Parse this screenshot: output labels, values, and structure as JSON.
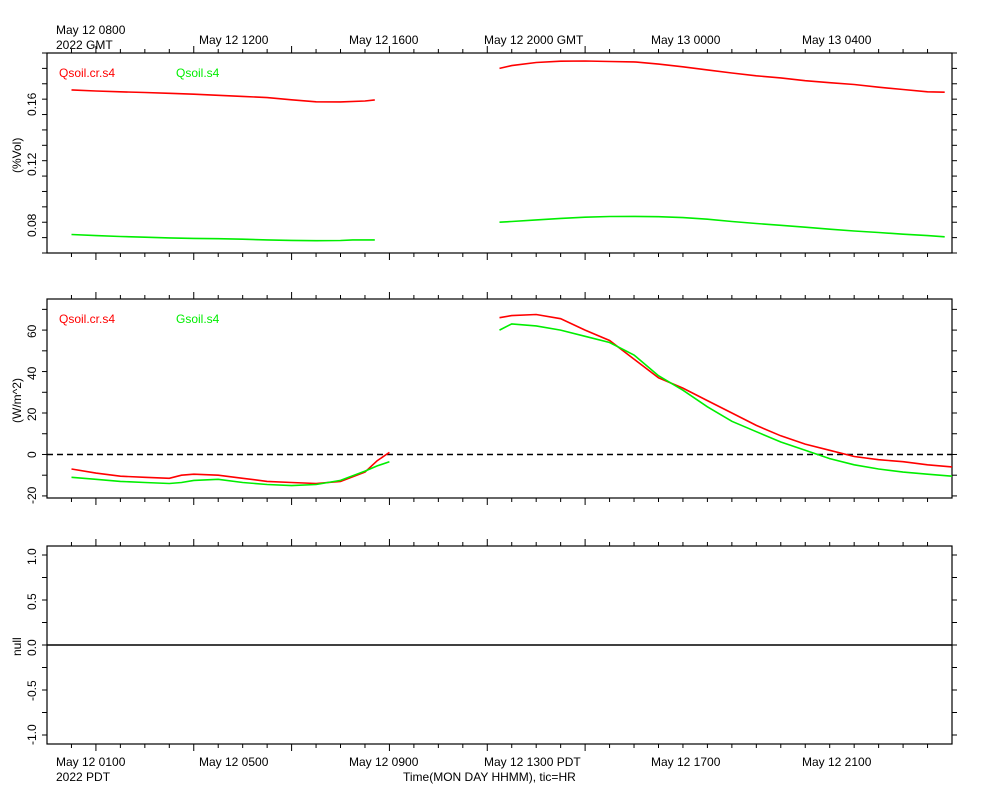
{
  "time_axis": {
    "gmt_labels": [
      "May 12 0800",
      "May 12 1200",
      "May 12 1600",
      "May 12 2000 GMT",
      "May 13 0000",
      "May 13 0400"
    ],
    "gmt_year": "2022 GMT",
    "pdt_labels": [
      "May 12 0100",
      "May 12 0500",
      "May 12 0900",
      "May 12 1300 PDT",
      "May 12 1700",
      "May 12 2100"
    ],
    "pdt_year": "2022 PDT",
    "xlabel": "Time(MON DAY HHMM), tic=HR"
  },
  "chart_data": [
    {
      "type": "line",
      "ylabel": "(%Vol)",
      "ylim": [
        0.06,
        0.19
      ],
      "yticks": [
        "0.08",
        "0.12",
        "0.16"
      ],
      "grid": false,
      "legend_position": "top-left",
      "series": [
        {
          "name": "Qsoil.cr.s4",
          "color": "#ff0000",
          "segments": [
            [
              [
                0,
                0.166
              ],
              [
                1,
                0.1653
              ],
              [
                2,
                0.1648
              ],
              [
                3,
                0.1643
              ],
              [
                4,
                0.1638
              ],
              [
                5,
                0.1632
              ],
              [
                6,
                0.1625
              ],
              [
                7,
                0.1618
              ],
              [
                8,
                0.161
              ],
              [
                9,
                0.1596
              ],
              [
                10,
                0.1583
              ],
              [
                11,
                0.1582
              ],
              [
                12,
                0.1588
              ],
              [
                12.4,
                0.1595
              ]
            ],
            [
              [
                17.5,
                0.18
              ],
              [
                18,
                0.1818
              ],
              [
                19,
                0.1838
              ],
              [
                20,
                0.1847
              ],
              [
                21,
                0.1848
              ],
              [
                22,
                0.1845
              ],
              [
                23,
                0.1842
              ],
              [
                24,
                0.1828
              ],
              [
                25,
                0.181
              ],
              [
                26,
                0.179
              ],
              [
                27,
                0.177
              ],
              [
                28,
                0.1752
              ],
              [
                29,
                0.1738
              ],
              [
                30,
                0.172
              ],
              [
                31,
                0.1707
              ],
              [
                32,
                0.1695
              ],
              [
                33,
                0.1678
              ],
              [
                34,
                0.1663
              ],
              [
                35,
                0.1648
              ],
              [
                35.7,
                0.1645
              ]
            ]
          ]
        },
        {
          "name": "Qsoil.s4",
          "color": "#00ee00",
          "segments": [
            [
              [
                0,
                0.072
              ],
              [
                1,
                0.0713
              ],
              [
                2,
                0.0707
              ],
              [
                3,
                0.0703
              ],
              [
                4,
                0.0698
              ],
              [
                5,
                0.0695
              ],
              [
                6,
                0.0693
              ],
              [
                7,
                0.069
              ],
              [
                8,
                0.0685
              ],
              [
                9,
                0.0682
              ],
              [
                10,
                0.068
              ],
              [
                11,
                0.0681
              ],
              [
                11.5,
                0.0685
              ],
              [
                12.4,
                0.0685
              ]
            ],
            [
              [
                17.5,
                0.08
              ],
              [
                18,
                0.0805
              ],
              [
                19,
                0.0815
              ],
              [
                20,
                0.0825
              ],
              [
                21,
                0.0833
              ],
              [
                22,
                0.0837
              ],
              [
                23,
                0.0838
              ],
              [
                24,
                0.0836
              ],
              [
                25,
                0.083
              ],
              [
                26,
                0.082
              ],
              [
                27,
                0.0805
              ],
              [
                28,
                0.0792
              ],
              [
                29,
                0.078
              ],
              [
                30,
                0.0768
              ],
              [
                31,
                0.0755
              ],
              [
                32,
                0.0743
              ],
              [
                33,
                0.0733
              ],
              [
                34,
                0.0722
              ],
              [
                35,
                0.0713
              ],
              [
                35.7,
                0.0705
              ]
            ]
          ]
        }
      ]
    },
    {
      "type": "line",
      "ylabel": "(W/m^2)",
      "ylim": [
        -21,
        75
      ],
      "yticks": [
        "-20",
        "0",
        "20",
        "40",
        "60"
      ],
      "reference_line": {
        "y": 0,
        "style": "dashed"
      },
      "grid": false,
      "legend_position": "top-left",
      "series": [
        {
          "name": "Qsoil.cr.s4",
          "color": "#ff0000",
          "segments": [
            [
              [
                0,
                -7
              ],
              [
                1,
                -9
              ],
              [
                2,
                -10.5
              ],
              [
                3,
                -11
              ],
              [
                4,
                -11.5
              ],
              [
                4.5,
                -10
              ],
              [
                5,
                -9.5
              ],
              [
                6,
                -10
              ],
              [
                7,
                -11.5
              ],
              [
                8,
                -13
              ],
              [
                9,
                -13.5
              ],
              [
                10,
                -14
              ],
              [
                11,
                -13
              ],
              [
                12,
                -8.5
              ],
              [
                12.5,
                -3
              ],
              [
                13,
                1
              ]
            ],
            [
              [
                17.5,
                66
              ],
              [
                18,
                67
              ],
              [
                19,
                67.5
              ],
              [
                20,
                65.5
              ],
              [
                21,
                60
              ],
              [
                22,
                55
              ],
              [
                23,
                46
              ],
              [
                24,
                37
              ],
              [
                25,
                32
              ],
              [
                26,
                26
              ],
              [
                27,
                20
              ],
              [
                28,
                14
              ],
              [
                29,
                9
              ],
              [
                30,
                5
              ],
              [
                31,
                2
              ],
              [
                32,
                -1
              ],
              [
                33,
                -2.5
              ],
              [
                34,
                -3.5
              ],
              [
                35,
                -5
              ],
              [
                36,
                -6
              ]
            ]
          ]
        },
        {
          "name": "Gsoil.s4",
          "color": "#00ee00",
          "segments": [
            [
              [
                0,
                -11
              ],
              [
                1,
                -12
              ],
              [
                2,
                -13
              ],
              [
                3,
                -13.5
              ],
              [
                4,
                -14
              ],
              [
                4.5,
                -13.5
              ],
              [
                5,
                -12.5
              ],
              [
                6,
                -12
              ],
              [
                7,
                -13.5
              ],
              [
                8,
                -14.5
              ],
              [
                9,
                -15
              ],
              [
                10,
                -14.5
              ],
              [
                11,
                -12.5
              ],
              [
                12,
                -8
              ],
              [
                12.5,
                -5.5
              ],
              [
                13,
                -3.5
              ]
            ],
            [
              [
                17.5,
                60
              ],
              [
                18,
                63
              ],
              [
                19,
                62
              ],
              [
                20,
                60
              ],
              [
                21,
                57
              ],
              [
                22,
                54
              ],
              [
                23,
                48
              ],
              [
                24,
                38
              ],
              [
                25,
                31
              ],
              [
                26,
                23
              ],
              [
                27,
                16
              ],
              [
                28,
                11
              ],
              [
                29,
                6
              ],
              [
                30,
                2
              ],
              [
                31,
                -2
              ],
              [
                32,
                -5
              ],
              [
                33,
                -7
              ],
              [
                34,
                -8.5
              ],
              [
                35,
                -9.5
              ],
              [
                36,
                -10.5
              ]
            ]
          ]
        }
      ]
    },
    {
      "type": "line",
      "ylabel": "null",
      "ylim": [
        -1.1,
        1.1
      ],
      "yticks": [
        "-1.0",
        "-0.5",
        "0.0",
        "0.5",
        "1.0"
      ],
      "reference_line": {
        "y": 0,
        "style": "solid"
      },
      "grid": false,
      "series": []
    }
  ]
}
